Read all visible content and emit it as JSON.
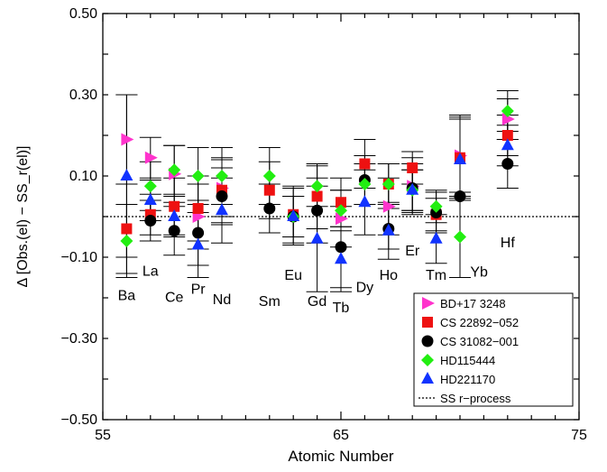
{
  "chart_data": {
    "type": "scatter",
    "xlabel": "Atomic Number",
    "ylabel": "Δ [Obs.(el) − SS_r(el)]",
    "xlim": [
      55,
      75
    ],
    "ylim": [
      -0.5,
      0.5
    ],
    "xticks": [
      "55",
      "65",
      "75"
    ],
    "yticks": [
      "0.50",
      "0.30",
      "0.10",
      "−0.10",
      "−0.30",
      "−0.50"
    ],
    "reference_line": {
      "y": 0.0,
      "name": "SS r−process",
      "style": "dotted"
    },
    "legend_position": "bottom-right",
    "element_labels": [
      {
        "text": "Ba",
        "x": 56,
        "y": -0.205
      },
      {
        "text": "La",
        "x": 57,
        "y": -0.145
      },
      {
        "text": "Ce",
        "x": 58,
        "y": -0.21
      },
      {
        "text": "Pr",
        "x": 59,
        "y": -0.19
      },
      {
        "text": "Nd",
        "x": 60,
        "y": -0.215
      },
      {
        "text": "Sm",
        "x": 62,
        "y": -0.22
      },
      {
        "text": "Eu",
        "x": 63,
        "y": -0.155
      },
      {
        "text": "Gd",
        "x": 64,
        "y": -0.22
      },
      {
        "text": "Tb",
        "x": 65,
        "y": -0.235
      },
      {
        "text": "Dy",
        "x": 66,
        "y": -0.185
      },
      {
        "text": "Ho",
        "x": 67,
        "y": -0.155
      },
      {
        "text": "Er",
        "x": 68,
        "y": -0.095
      },
      {
        "text": "Tm",
        "x": 69,
        "y": -0.155
      },
      {
        "text": "Yb",
        "x": 70.8,
        "y": -0.148
      },
      {
        "text": "Hf",
        "x": 72,
        "y": -0.075
      }
    ],
    "series": [
      {
        "name": "BD+17 3248",
        "color": "#ff33cc",
        "marker": "triangle-right",
        "points": [
          {
            "x": 56,
            "y": 0.19,
            "err": 0.11
          },
          {
            "x": 57,
            "y": 0.145,
            "err": 0.05
          },
          {
            "x": 58,
            "y": 0.105,
            "err": 0.07
          },
          {
            "x": 59,
            "y": 0.0,
            "err": 0.08
          },
          {
            "x": 60,
            "y": 0.07,
            "err": 0.07
          },
          {
            "x": 65,
            "y": -0.005,
            "err": 0.07
          },
          {
            "x": 67,
            "y": 0.025,
            "err": 0.07
          },
          {
            "x": 68,
            "y": 0.075,
            "err": 0.07
          },
          {
            "x": 70,
            "y": 0.15,
            "err": 0.09
          },
          {
            "x": 72,
            "y": 0.24,
            "err": 0.05
          }
        ]
      },
      {
        "name": "CS 22892−052",
        "color": "#ee1111",
        "marker": "square",
        "points": [
          {
            "x": 56,
            "y": -0.03,
            "err": 0.11
          },
          {
            "x": 57,
            "y": 0.005,
            "err": 0.05
          },
          {
            "x": 58,
            "y": 0.025,
            "err": 0.07
          },
          {
            "x": 59,
            "y": 0.02,
            "err": 0.08
          },
          {
            "x": 60,
            "y": 0.065,
            "err": 0.08
          },
          {
            "x": 62,
            "y": 0.065,
            "err": 0.07
          },
          {
            "x": 63,
            "y": 0.005,
            "err": 0.07
          },
          {
            "x": 64,
            "y": 0.05,
            "err": 0.08
          },
          {
            "x": 65,
            "y": 0.035,
            "err": 0.06
          },
          {
            "x": 66,
            "y": 0.13,
            "err": 0.06
          },
          {
            "x": 67,
            "y": 0.08,
            "err": 0.05
          },
          {
            "x": 68,
            "y": 0.12,
            "err": 0.04
          },
          {
            "x": 69,
            "y": 0.005,
            "err": 0.04
          },
          {
            "x": 70,
            "y": 0.145,
            "err": 0.1
          },
          {
            "x": 72,
            "y": 0.2,
            "err": 0.05
          }
        ]
      },
      {
        "name": "CS 31082−001",
        "color": "#000000",
        "marker": "circle",
        "points": [
          {
            "x": 57,
            "y": -0.01,
            "err": 0.05
          },
          {
            "x": 58,
            "y": -0.035,
            "err": 0.06
          },
          {
            "x": 59,
            "y": -0.04,
            "err": 0.08
          },
          {
            "x": 60,
            "y": 0.05,
            "err": 0.07
          },
          {
            "x": 62,
            "y": 0.02,
            "err": 0.06
          },
          {
            "x": 63,
            "y": 0.0,
            "err": 0.07
          },
          {
            "x": 64,
            "y": 0.015,
            "err": 0.08
          },
          {
            "x": 65,
            "y": -0.075,
            "err": 0.1
          },
          {
            "x": 66,
            "y": 0.09,
            "err": 0.06
          },
          {
            "x": 67,
            "y": -0.03,
            "err": 0.05
          },
          {
            "x": 68,
            "y": 0.07,
            "err": 0.06
          },
          {
            "x": 69,
            "y": 0.01,
            "err": 0.05
          },
          {
            "x": 70,
            "y": 0.05,
            "err": 0.2
          },
          {
            "x": 72,
            "y": 0.13,
            "err": 0.06
          }
        ]
      },
      {
        "name": "HD115444",
        "color": "#22ee11",
        "marker": "diamond",
        "points": [
          {
            "x": 56,
            "y": -0.06,
            "err": 0.09
          },
          {
            "x": 57,
            "y": 0.075,
            "err": 0.06
          },
          {
            "x": 58,
            "y": 0.115,
            "err": 0.06
          },
          {
            "x": 59,
            "y": 0.1,
            "err": 0.07
          },
          {
            "x": 60,
            "y": 0.1,
            "err": 0.07
          },
          {
            "x": 62,
            "y": 0.1,
            "err": 0.07
          },
          {
            "x": 63,
            "y": 0.0,
            "err": 0.05
          },
          {
            "x": 64,
            "y": 0.075,
            "err": 0.05
          },
          {
            "x": 65,
            "y": 0.015,
            "err": 0.05
          },
          {
            "x": 66,
            "y": 0.08,
            "err": 0.05
          },
          {
            "x": 67,
            "y": 0.08,
            "err": 0.05
          },
          {
            "x": 68,
            "y": 0.065,
            "err": 0.05
          },
          {
            "x": 69,
            "y": 0.025,
            "err": 0.04
          },
          {
            "x": 70,
            "y": -0.05,
            "err": 0.1
          },
          {
            "x": 72,
            "y": 0.26,
            "err": 0.05
          }
        ]
      },
      {
        "name": "HD221170",
        "color": "#1133ff",
        "marker": "triangle-up",
        "points": [
          {
            "x": 56,
            "y": 0.1,
            "err": 0.2
          },
          {
            "x": 57,
            "y": 0.04,
            "err": 0.05
          },
          {
            "x": 58,
            "y": 0.0,
            "err": 0.05
          },
          {
            "x": 59,
            "y": -0.07,
            "err": 0.08
          },
          {
            "x": 60,
            "y": 0.015,
            "err": 0.08
          },
          {
            "x": 63,
            "y": 0.0,
            "err": 0.05
          },
          {
            "x": 64,
            "y": -0.055,
            "err": 0.13
          },
          {
            "x": 65,
            "y": -0.105,
            "err": 0.08
          },
          {
            "x": 66,
            "y": 0.035,
            "err": 0.08
          },
          {
            "x": 67,
            "y": -0.035,
            "err": 0.07
          },
          {
            "x": 68,
            "y": 0.065,
            "err": 0.05
          },
          {
            "x": 69,
            "y": -0.055,
            "err": 0.06
          },
          {
            "x": 70,
            "y": 0.14,
            "err": 0.1
          },
          {
            "x": 72,
            "y": 0.175,
            "err": 0.05
          }
        ]
      }
    ]
  }
}
